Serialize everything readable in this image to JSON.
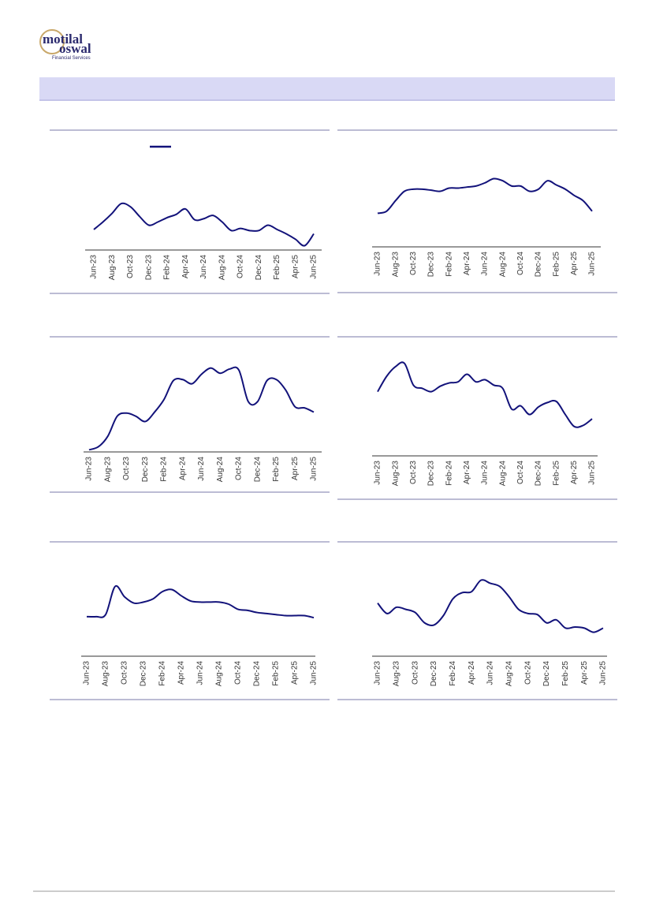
{
  "header": {
    "logo_line1": "motilal",
    "logo_line2": "oswal",
    "logo_tagline": "Financial Services"
  },
  "chart_data": [
    {
      "type": "line",
      "categories": [
        "Jun-23",
        null,
        "Aug-23",
        null,
        "Oct-23",
        null,
        "Dec-23",
        null,
        "Feb-24",
        null,
        "Apr-24",
        null,
        "Jun-24",
        null,
        "Aug-24",
        null,
        "Oct-24",
        null,
        "Dec-24",
        null,
        "Feb-25",
        null,
        "Apr-25",
        null,
        "Jun-25"
      ],
      "ylim": [
        0,
        100
      ],
      "series": [
        {
          "color": "#12127a",
          "values": [
            19,
            26,
            34,
            43,
            40,
            31,
            23,
            26,
            30,
            33,
            38,
            28,
            29,
            32,
            26,
            18,
            20,
            18,
            18,
            23,
            19,
            15,
            10,
            4,
            15
          ]
        }
      ]
    },
    {
      "type": "line",
      "categories": [
        "Jun-23",
        null,
        "Aug-23",
        null,
        "Oct-23",
        null,
        "Dec-23",
        null,
        "Feb-24",
        null,
        "Apr-24",
        null,
        "Jun-24",
        null,
        "Aug-24",
        null,
        "Oct-24",
        null,
        "Dec-24",
        null,
        "Feb-25",
        null,
        "Apr-25",
        null,
        "Jun-25"
      ],
      "ylim": [
        0,
        100
      ],
      "series": [
        {
          "color": "#12127a",
          "values": [
            32,
            34,
            44,
            53,
            55,
            55,
            54,
            53,
            56,
            56,
            57,
            58,
            61,
            65,
            63,
            58,
            58,
            53,
            55,
            63,
            59,
            55,
            49,
            44,
            34
          ]
        }
      ]
    },
    {
      "type": "line",
      "categories": [
        "Jun-23",
        null,
        "Aug-23",
        null,
        "Oct-23",
        null,
        "Dec-23",
        null,
        "Feb-24",
        null,
        "Apr-24",
        null,
        "Jun-24",
        null,
        "Aug-24",
        null,
        "Oct-24",
        null,
        "Dec-24",
        null,
        "Feb-25",
        null,
        "Apr-25",
        null,
        "Jun-25"
      ],
      "ylim": [
        0,
        100
      ],
      "series": [
        {
          "color": "#12127a",
          "values": [
            2,
            5,
            15,
            34,
            37,
            34,
            29,
            38,
            50,
            68,
            69,
            65,
            74,
            80,
            75,
            79,
            78,
            48,
            48,
            68,
            69,
            59,
            43,
            42,
            38
          ]
        }
      ]
    },
    {
      "type": "line",
      "categories": [
        "Jun-23",
        null,
        "Aug-23",
        null,
        "Oct-23",
        null,
        "Dec-23",
        null,
        "Feb-24",
        null,
        "Apr-24",
        null,
        "Jun-24",
        null,
        "Aug-24",
        null,
        "Oct-24",
        null,
        "Dec-24",
        null,
        "Feb-25",
        null,
        "Apr-25",
        null,
        "Jun-25"
      ],
      "ylim": [
        0,
        100
      ],
      "series": [
        {
          "color": "#12127a",
          "values": [
            59,
            73,
            82,
            85,
            65,
            62,
            59,
            64,
            67,
            68,
            75,
            68,
            70,
            65,
            62,
            43,
            46,
            38,
            45,
            49,
            50,
            38,
            27,
            28,
            34
          ]
        }
      ]
    },
    {
      "type": "line",
      "categories": [
        "Jun-23",
        null,
        "Aug-23",
        null,
        "Oct-23",
        null,
        "Dec-23",
        null,
        "Feb-24",
        null,
        "Apr-24",
        null,
        "Jun-24",
        null,
        "Aug-24",
        null,
        "Oct-24",
        null,
        "Dec-24",
        null,
        "Feb-25",
        null,
        "Apr-25",
        null,
        "Jun-25"
      ],
      "ylim": [
        0,
        100
      ],
      "series": [
        {
          "color": "#12127a",
          "values": [
            38,
            38,
            40,
            67,
            57,
            51,
            52,
            55,
            62,
            64,
            58,
            53,
            52,
            52,
            52,
            50,
            45,
            44,
            42,
            41,
            40,
            39,
            39,
            39,
            37
          ]
        }
      ]
    },
    {
      "type": "line",
      "categories": [
        "Jun-23",
        null,
        "Aug-23",
        null,
        "Oct-23",
        null,
        "Dec-23",
        null,
        "Feb-24",
        null,
        "Apr-24",
        null,
        "Jun-24",
        null,
        "Aug-24",
        null,
        "Oct-24",
        null,
        "Dec-24",
        null,
        "Feb-25",
        null,
        "Apr-25",
        null,
        "Jun-25"
      ],
      "ylim": [
        0,
        100
      ],
      "series": [
        {
          "color": "#12127a",
          "values": [
            51,
            41,
            47,
            45,
            42,
            32,
            30,
            39,
            55,
            61,
            62,
            73,
            70,
            67,
            57,
            45,
            41,
            40,
            32,
            35,
            27,
            28,
            27,
            23,
            27
          ]
        }
      ]
    }
  ]
}
